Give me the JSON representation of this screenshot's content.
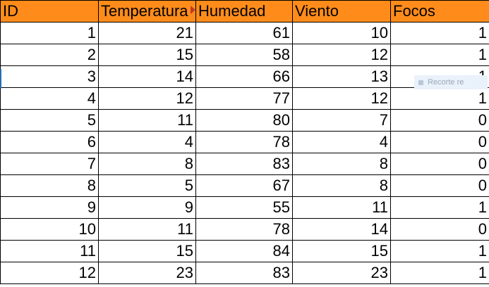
{
  "columns": [
    "ID",
    "Temperatura",
    "Humedad",
    "Viento",
    "Focos"
  ],
  "rows": [
    [
      "1",
      "21",
      "61",
      "10",
      "1"
    ],
    [
      "2",
      "15",
      "58",
      "12",
      "1"
    ],
    [
      "3",
      "14",
      "66",
      "13",
      "1"
    ],
    [
      "4",
      "12",
      "77",
      "12",
      "1"
    ],
    [
      "5",
      "11",
      "80",
      "7",
      "0"
    ],
    [
      "6",
      "4",
      "78",
      "4",
      "0"
    ],
    [
      "7",
      "8",
      "83",
      "8",
      "0"
    ],
    [
      "8",
      "5",
      "67",
      "8",
      "0"
    ],
    [
      "9",
      "9",
      "55",
      "11",
      "1"
    ],
    [
      "10",
      "11",
      "78",
      "14",
      "0"
    ],
    [
      "11",
      "15",
      "84",
      "15",
      "1"
    ],
    [
      "12",
      "23",
      "83",
      "23",
      "1"
    ]
  ],
  "overlay_tooltip": "Recorte re",
  "colors": {
    "header_bg": "#ff8c1a",
    "grid": "#000000",
    "overflow_marker": "#c0392b"
  }
}
